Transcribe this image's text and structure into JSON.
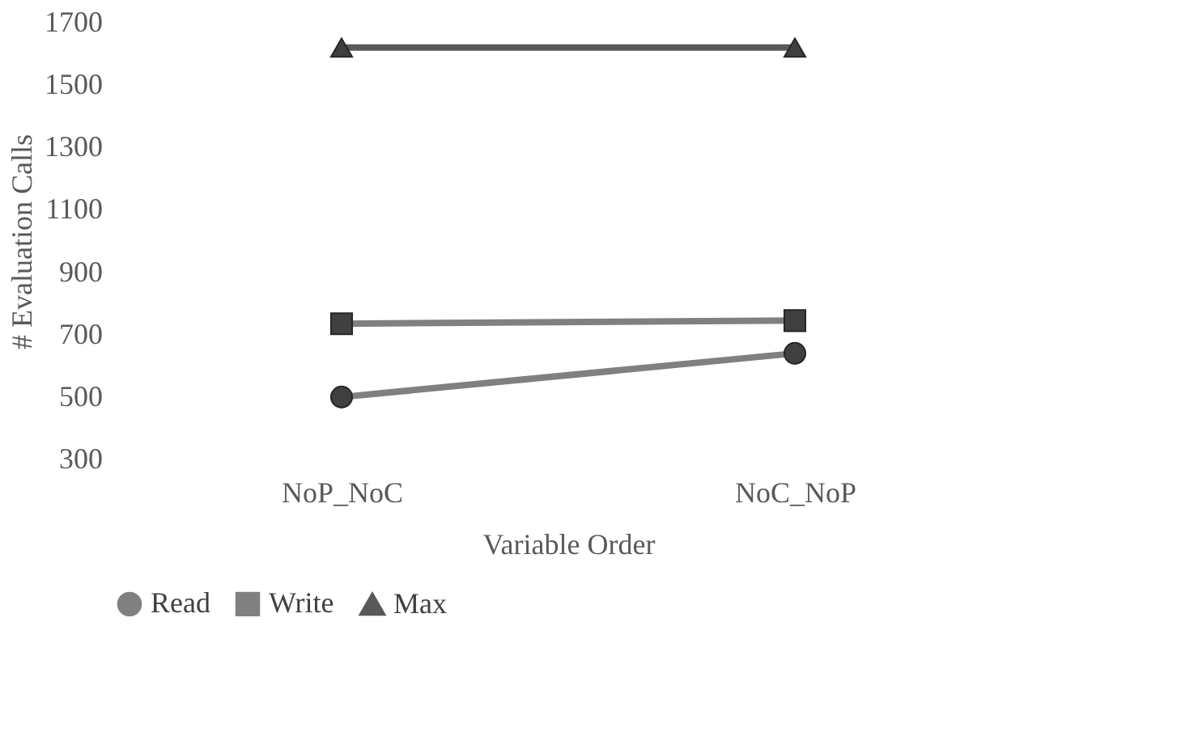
{
  "chart_data": {
    "type": "line",
    "xlabel": "Variable Order",
    "ylabel": "# Evaluation Calls",
    "categories": [
      "NoP_NoC",
      "NoC_NoP"
    ],
    "series": [
      {
        "name": "Read",
        "color": "#808080",
        "marker": "circle",
        "values": [
          500,
          640
        ]
      },
      {
        "name": "Write",
        "color": "#808080",
        "marker": "square",
        "values": [
          735,
          745
        ]
      },
      {
        "name": "Max",
        "color": "#595959",
        "marker": "triangle",
        "values": [
          1620,
          1620
        ]
      }
    ],
    "ylim": [
      300,
      1700
    ],
    "yticks": [
      300,
      500,
      700,
      900,
      1100,
      1300,
      1500,
      1700
    ],
    "grid": false,
    "legend": "bottom",
    "line_style": "solid"
  }
}
